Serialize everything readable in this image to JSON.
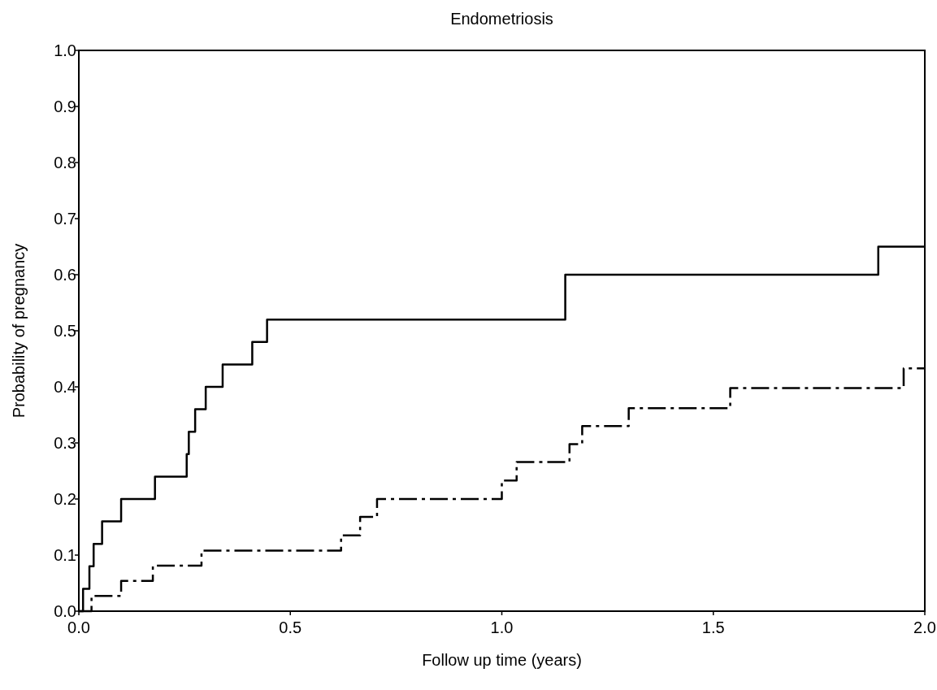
{
  "chart_data": {
    "type": "step",
    "title": "Endometriosis",
    "xlabel": "Follow up time (years)",
    "ylabel": "Probability of pregnancy",
    "xlim": [
      0,
      2
    ],
    "xticks": [
      {
        "value": 0,
        "label": "0.0"
      },
      0.5,
      {
        "value": 1,
        "label": "1.0"
      },
      1.5,
      {
        "value": 2,
        "label": "2.0"
      }
    ],
    "ylim": [
      0,
      1
    ],
    "yticks": [
      {
        "value": 0,
        "label": "0.0"
      },
      0.1,
      0.2,
      0.3,
      0.4,
      0.5,
      0.6,
      0.7,
      0.8,
      0.9,
      {
        "value": 1,
        "label": "1.0"
      }
    ],
    "grid": false,
    "series": [
      {
        "color": "#000000",
        "line_style": "solid",
        "x": [
          0,
          0.01,
          0.025,
          0.035,
          0.055,
          0.1,
          0.18,
          0.255,
          0.26,
          0.275,
          0.3,
          0.34,
          0.41,
          0.445,
          1.15,
          1.89,
          2.0
        ],
        "values": [
          0,
          0.04,
          0.08,
          0.12,
          0.16,
          0.2,
          0.24,
          0.28,
          0.32,
          0.36,
          0.4,
          0.44,
          0.48,
          0.52,
          0.6,
          0.65,
          0.65
        ]
      },
      {
        "color": "#000000",
        "line_style": "dashed",
        "x": [
          0,
          0.03,
          0.1,
          0.175,
          0.29,
          0.62,
          0.665,
          0.705,
          1.0,
          1.035,
          1.16,
          1.19,
          1.3,
          1.54,
          1.95,
          2.0
        ],
        "values": [
          0,
          0.027,
          0.054,
          0.081,
          0.108,
          0.135,
          0.168,
          0.2,
          0.233,
          0.266,
          0.298,
          0.33,
          0.362,
          0.398,
          0.433,
          0.433
        ]
      }
    ]
  }
}
